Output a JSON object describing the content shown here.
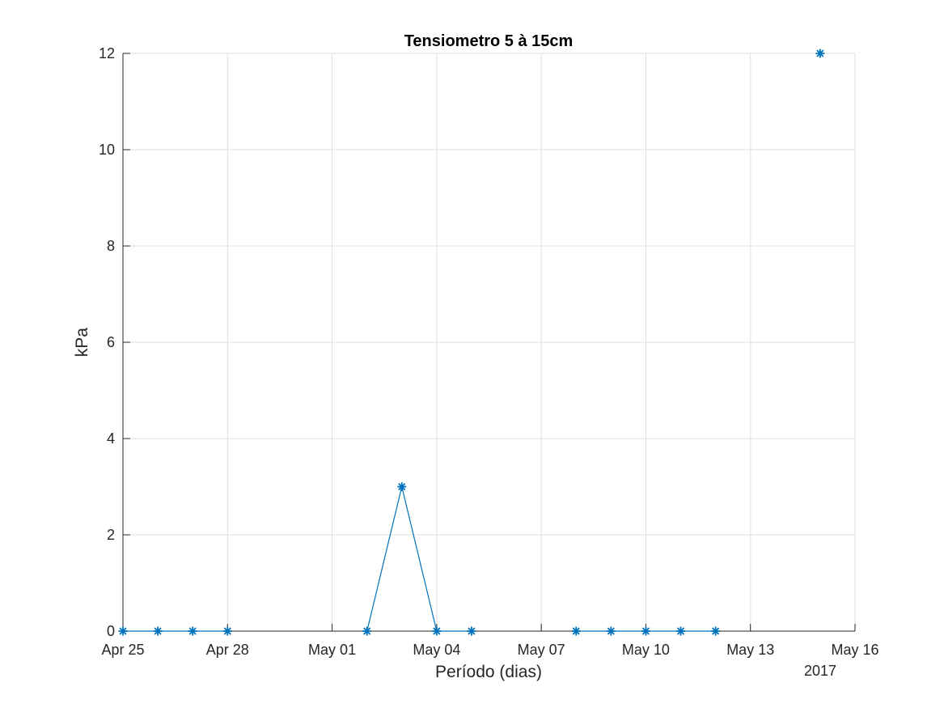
{
  "chart_data": {
    "type": "line",
    "title": "Tensiometro 5 à 15cm",
    "xlabel": "Período (dias)",
    "ylabel": "kPa",
    "year_label": "2017",
    "x_is_date": true,
    "xlim": [
      "2017-04-25",
      "2017-05-16"
    ],
    "ylim": [
      0,
      12
    ],
    "yticks": [
      0,
      2,
      4,
      6,
      8,
      10,
      12
    ],
    "xticks": [
      {
        "date": "2017-04-25",
        "label": "Apr 25"
      },
      {
        "date": "2017-04-28",
        "label": "Apr 28"
      },
      {
        "date": "2017-05-01",
        "label": "May 01"
      },
      {
        "date": "2017-05-04",
        "label": "May 04"
      },
      {
        "date": "2017-05-07",
        "label": "May 07"
      },
      {
        "date": "2017-05-10",
        "label": "May 10"
      },
      {
        "date": "2017-05-13",
        "label": "May 13"
      },
      {
        "date": "2017-05-16",
        "label": "May 16"
      }
    ],
    "grid": true,
    "marker": "asterisk",
    "color": "#0072BD",
    "series": [
      {
        "segments": [
          [
            {
              "x": "2017-04-25",
              "y": 0
            },
            {
              "x": "2017-04-26",
              "y": 0
            },
            {
              "x": "2017-04-27",
              "y": 0
            },
            {
              "x": "2017-04-28",
              "y": 0
            }
          ],
          [
            {
              "x": "2017-05-02",
              "y": 0
            },
            {
              "x": "2017-05-03",
              "y": 3
            },
            {
              "x": "2017-05-04",
              "y": 0
            },
            {
              "x": "2017-05-05",
              "y": 0
            }
          ],
          [
            {
              "x": "2017-05-08",
              "y": 0
            },
            {
              "x": "2017-05-09",
              "y": 0
            },
            {
              "x": "2017-05-10",
              "y": 0
            },
            {
              "x": "2017-05-11",
              "y": 0
            },
            {
              "x": "2017-05-12",
              "y": 0
            }
          ],
          [
            {
              "x": "2017-05-15",
              "y": 12
            }
          ]
        ]
      }
    ]
  }
}
